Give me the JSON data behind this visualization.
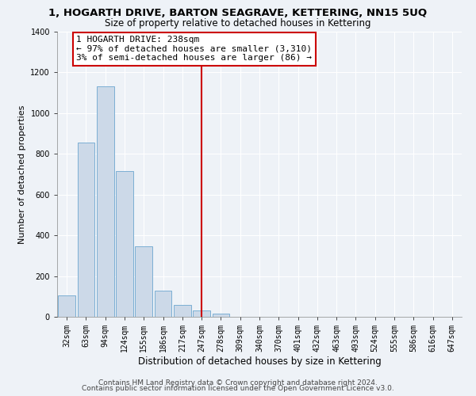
{
  "title": "1, HOGARTH DRIVE, BARTON SEAGRAVE, KETTERING, NN15 5UQ",
  "subtitle": "Size of property relative to detached houses in Kettering",
  "xlabel": "Distribution of detached houses by size in Kettering",
  "ylabel": "Number of detached properties",
  "bar_color": "#ccd9e8",
  "bar_edge_color": "#7bafd4",
  "bin_labels": [
    "32sqm",
    "63sqm",
    "94sqm",
    "124sqm",
    "155sqm",
    "186sqm",
    "217sqm",
    "247sqm",
    "278sqm",
    "309sqm",
    "340sqm",
    "370sqm",
    "401sqm",
    "432sqm",
    "463sqm",
    "493sqm",
    "524sqm",
    "555sqm",
    "586sqm",
    "616sqm",
    "647sqm"
  ],
  "bar_heights": [
    105,
    855,
    1130,
    715,
    345,
    130,
    60,
    30,
    15,
    0,
    0,
    0,
    0,
    0,
    0,
    0,
    0,
    0,
    0,
    0,
    0
  ],
  "vline_x": 7,
  "vline_color": "#cc0000",
  "annotation_title": "1 HOGARTH DRIVE: 238sqm",
  "annotation_line1": "← 97% of detached houses are smaller (3,310)",
  "annotation_line2": "3% of semi-detached houses are larger (86) →",
  "annotation_box_color": "#ffffff",
  "annotation_box_edge": "#cc0000",
  "ylim": [
    0,
    1400
  ],
  "yticks": [
    0,
    200,
    400,
    600,
    800,
    1000,
    1200,
    1400
  ],
  "footnote1": "Contains HM Land Registry data © Crown copyright and database right 2024.",
  "footnote2": "Contains public sector information licensed under the Open Government Licence v3.0.",
  "title_fontsize": 9.5,
  "subtitle_fontsize": 8.5,
  "xlabel_fontsize": 8.5,
  "ylabel_fontsize": 8,
  "tick_fontsize": 7,
  "annotation_fontsize": 8,
  "footnote_fontsize": 6.5,
  "background_color": "#eef2f7"
}
